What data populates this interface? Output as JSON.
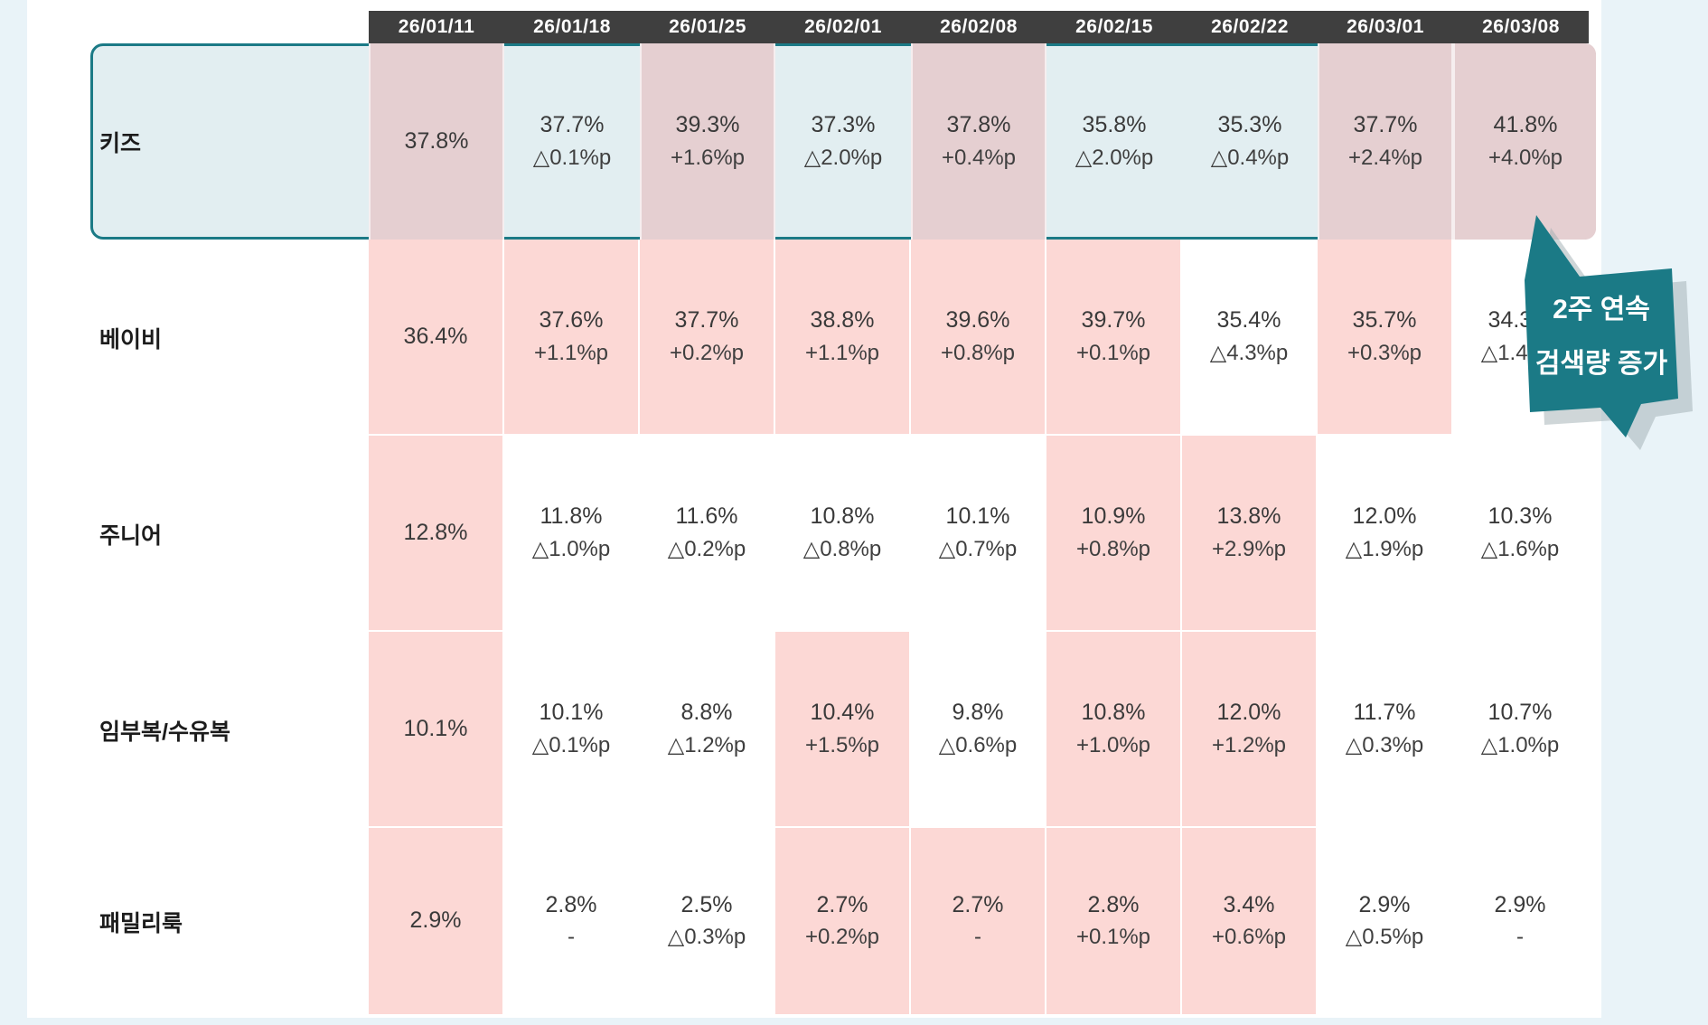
{
  "table": {
    "columns": [
      "26/01/11",
      "26/01/18",
      "26/01/25",
      "26/02/01",
      "26/02/08",
      "26/02/15",
      "26/02/22",
      "26/03/01",
      "26/03/08"
    ],
    "rows": [
      {
        "label": "키즈",
        "highlighted_row": true,
        "cells": [
          {
            "value": "37.8%",
            "delta": "",
            "hl": true
          },
          {
            "value": "37.7%",
            "delta": "△0.1%p",
            "hl": false
          },
          {
            "value": "39.3%",
            "delta": "+1.6%p",
            "hl": true
          },
          {
            "value": "37.3%",
            "delta": "△2.0%p",
            "hl": false
          },
          {
            "value": "37.8%",
            "delta": "+0.4%p",
            "hl": true
          },
          {
            "value": "35.8%",
            "delta": "△2.0%p",
            "hl": false
          },
          {
            "value": "35.3%",
            "delta": "△0.4%p",
            "hl": false
          },
          {
            "value": "37.7%",
            "delta": "+2.4%p",
            "hl": true
          },
          {
            "value": "41.8%",
            "delta": "+4.0%p",
            "hl": true
          }
        ]
      },
      {
        "label": "베이비",
        "highlighted_row": false,
        "cells": [
          {
            "value": "36.4%",
            "delta": "",
            "hl": true
          },
          {
            "value": "37.6%",
            "delta": "+1.1%p",
            "hl": true
          },
          {
            "value": "37.7%",
            "delta": "+0.2%p",
            "hl": true
          },
          {
            "value": "38.8%",
            "delta": "+1.1%p",
            "hl": true
          },
          {
            "value": "39.6%",
            "delta": "+0.8%p",
            "hl": true
          },
          {
            "value": "39.7%",
            "delta": "+0.1%p",
            "hl": true
          },
          {
            "value": "35.4%",
            "delta": "△4.3%p",
            "hl": false
          },
          {
            "value": "35.7%",
            "delta": "+0.3%p",
            "hl": true
          },
          {
            "value": "34.3%",
            "delta": "△1.4%p",
            "hl": false
          }
        ]
      },
      {
        "label": "주니어",
        "highlighted_row": false,
        "cells": [
          {
            "value": "12.8%",
            "delta": "",
            "hl": true
          },
          {
            "value": "11.8%",
            "delta": "△1.0%p",
            "hl": false
          },
          {
            "value": "11.6%",
            "delta": "△0.2%p",
            "hl": false
          },
          {
            "value": "10.8%",
            "delta": "△0.8%p",
            "hl": false
          },
          {
            "value": "10.1%",
            "delta": "△0.7%p",
            "hl": false
          },
          {
            "value": "10.9%",
            "delta": "+0.8%p",
            "hl": true
          },
          {
            "value": "13.8%",
            "delta": "+2.9%p",
            "hl": true
          },
          {
            "value": "12.0%",
            "delta": "△1.9%p",
            "hl": false
          },
          {
            "value": "10.3%",
            "delta": "△1.6%p",
            "hl": false
          }
        ]
      },
      {
        "label": "임부복/수유복",
        "highlighted_row": false,
        "cells": [
          {
            "value": "10.1%",
            "delta": "",
            "hl": true
          },
          {
            "value": "10.1%",
            "delta": "△0.1%p",
            "hl": false
          },
          {
            "value": "8.8%",
            "delta": "△1.2%p",
            "hl": false
          },
          {
            "value": "10.4%",
            "delta": "+1.5%p",
            "hl": true
          },
          {
            "value": "9.8%",
            "delta": "△0.6%p",
            "hl": false
          },
          {
            "value": "10.8%",
            "delta": "+1.0%p",
            "hl": true
          },
          {
            "value": "12.0%",
            "delta": "+1.2%p",
            "hl": true
          },
          {
            "value": "11.7%",
            "delta": "△0.3%p",
            "hl": false
          },
          {
            "value": "10.7%",
            "delta": "△1.0%p",
            "hl": false
          }
        ]
      },
      {
        "label": "패밀리룩",
        "highlighted_row": false,
        "cells": [
          {
            "value": "2.9%",
            "delta": "",
            "hl": true
          },
          {
            "value": "2.8%",
            "delta": "-",
            "hl": false
          },
          {
            "value": "2.5%",
            "delta": "△0.3%p",
            "hl": false
          },
          {
            "value": "2.7%",
            "delta": "+0.2%p",
            "hl": true
          },
          {
            "value": "2.7%",
            "delta": "-",
            "hl": true
          },
          {
            "value": "2.8%",
            "delta": "+0.1%p",
            "hl": true
          },
          {
            "value": "3.4%",
            "delta": "+0.6%p",
            "hl": true
          },
          {
            "value": "2.9%",
            "delta": "△0.5%p",
            "hl": false
          },
          {
            "value": "2.9%",
            "delta": "-",
            "hl": false
          }
        ]
      }
    ]
  },
  "callout": {
    "line1": "2주 연속",
    "line2": "검색량 증가"
  },
  "colors": {
    "header_bg": "#3f3f3f",
    "highlight_pink": "#fcd8d5",
    "highlight_mauve": "#e5cfd1",
    "kids_row_bg": "#e2eef1",
    "accent_teal": "#1b7a86",
    "page_margin_blue": "#e9f3f8",
    "text": "#3a3a3a"
  },
  "chart_data": {
    "type": "table",
    "columns": [
      "26/01/11",
      "26/01/18",
      "26/01/25",
      "26/02/01",
      "26/02/08",
      "26/02/15",
      "26/02/22",
      "26/03/01",
      "26/03/08"
    ],
    "rows": [
      {
        "label": "키즈",
        "values": [
          37.8,
          37.7,
          39.3,
          37.3,
          37.8,
          35.8,
          35.3,
          37.7,
          41.8
        ],
        "deltas_pct_point": [
          null,
          -0.1,
          1.6,
          -2.0,
          0.4,
          -2.0,
          -0.4,
          2.4,
          4.0
        ]
      },
      {
        "label": "베이비",
        "values": [
          36.4,
          37.6,
          37.7,
          38.8,
          39.6,
          39.7,
          35.4,
          35.7,
          34.3
        ],
        "deltas_pct_point": [
          null,
          1.1,
          0.2,
          1.1,
          0.8,
          0.1,
          -4.3,
          0.3,
          -1.4
        ]
      },
      {
        "label": "주니어",
        "values": [
          12.8,
          11.8,
          11.6,
          10.8,
          10.1,
          10.9,
          13.8,
          12.0,
          10.3
        ],
        "deltas_pct_point": [
          null,
          -1.0,
          -0.2,
          -0.8,
          -0.7,
          0.8,
          2.9,
          -1.9,
          -1.6
        ]
      },
      {
        "label": "임부복/수유복",
        "values": [
          10.1,
          10.1,
          8.8,
          10.4,
          9.8,
          10.8,
          12.0,
          11.7,
          10.7
        ],
        "deltas_pct_point": [
          null,
          -0.1,
          -1.2,
          1.5,
          -0.6,
          1.0,
          1.2,
          -0.3,
          -1.0
        ]
      },
      {
        "label": "패밀리룩",
        "values": [
          2.9,
          2.8,
          2.5,
          2.7,
          2.7,
          2.8,
          3.4,
          2.9,
          2.9
        ],
        "deltas_pct_point": [
          null,
          0,
          -0.3,
          0.2,
          0,
          0.1,
          0.6,
          -0.5,
          0
        ]
      }
    ],
    "annotation": "2주 연속 검색량 증가",
    "annotation_target": {
      "row": "키즈",
      "column": "26/03/08"
    }
  }
}
